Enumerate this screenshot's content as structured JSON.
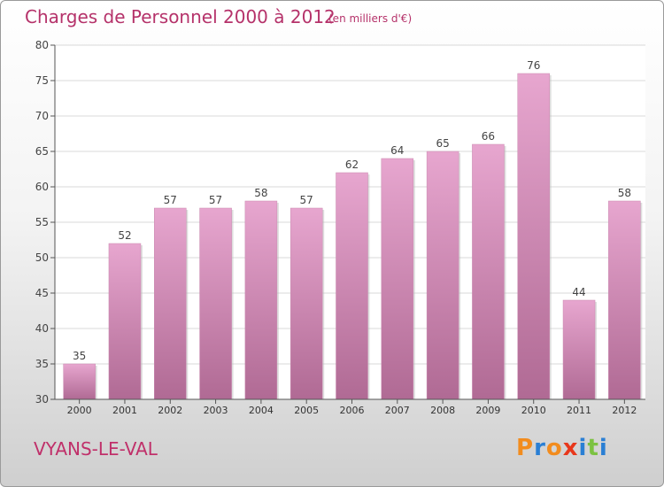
{
  "header": {
    "title": "Charges de Personnel 2000 à 2012",
    "subtitle": "(en milliers d'€)"
  },
  "footer": {
    "commune": "VYANS-LE-VAL",
    "logo_text": "Proxiti",
    "logo_colors": [
      "#f28c1e",
      "#2a7fd4",
      "#f28c1e",
      "#e8381c",
      "#2a7fd4",
      "#7cc242",
      "#2a7fd4"
    ]
  },
  "chart_data": {
    "type": "bar",
    "categories": [
      "2000",
      "2001",
      "2002",
      "2003",
      "2004",
      "2005",
      "2006",
      "2007",
      "2008",
      "2009",
      "2010",
      "2011",
      "2012"
    ],
    "values": [
      35,
      52,
      57,
      57,
      58,
      57,
      62,
      64,
      65,
      66,
      76,
      44,
      58
    ],
    "title": "Charges de Personnel 2000 à 2012",
    "subtitle": "(en milliers d'€)",
    "xlabel": "",
    "ylabel": "",
    "ylim": [
      30,
      80
    ],
    "yticks": [
      30,
      35,
      40,
      45,
      50,
      55,
      60,
      65,
      70,
      75,
      80
    ],
    "grid": true,
    "bar_color_top": "#e7a6cf",
    "bar_color_bottom": "#b06a94"
  }
}
